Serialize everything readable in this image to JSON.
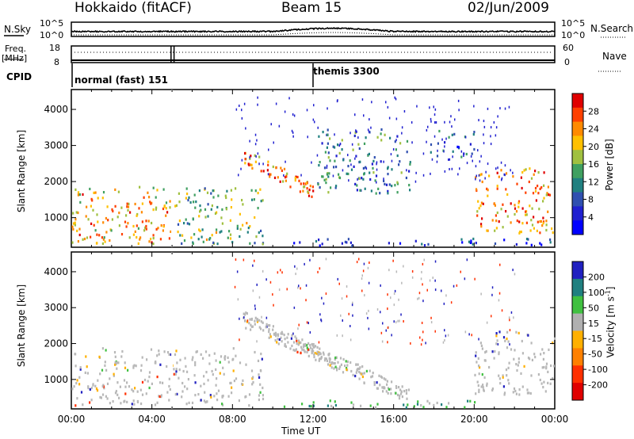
{
  "header": {
    "title": "Hokkaido (fitACF)",
    "beam": "Beam 15",
    "date": "02/Jun/2009"
  },
  "labels": {
    "nsky": "N.Sky",
    "nsearch": "N.Search",
    "freq_l1": "Freq.",
    "freq_l2": "[MHz]",
    "nave": "Nave",
    "cpid": "CPID",
    "nsky_ticks": [
      "10^5",
      "10^0"
    ],
    "nsearch_ticks": [
      "10^5",
      "10^0"
    ],
    "freq_ticks": [
      "18",
      "8"
    ],
    "nave_ticks": [
      "60",
      "0"
    ]
  },
  "cpid_segments": [
    {
      "start_hour": 0.0,
      "label": "normal (fast) 151"
    },
    {
      "start_hour": 12.0,
      "label": "themis 3300"
    }
  ],
  "colorbars": {
    "power": {
      "label": "Power [dB]",
      "ticks": [
        "28",
        "24",
        "20",
        "16",
        "12",
        "8",
        "4"
      ],
      "colors": [
        "#e00000",
        "#ff4000",
        "#ff8a00",
        "#ffc000",
        "#a0c040",
        "#40a060",
        "#208080",
        "#3050b0",
        "#2020d0",
        "#0000ff"
      ]
    },
    "velocity": {
      "label": "Velocity [m s",
      "label_exp": "-1",
      "label_end": "]",
      "ticks": [
        "200",
        "100",
        "50",
        "15",
        "-15",
        "-50",
        "-100",
        "-200"
      ],
      "colors": [
        "#2020c0",
        "#208080",
        "#40c040",
        "#b0b0b0",
        "#ffb000",
        "#ff8000",
        "#ff3000",
        "#e00000"
      ]
    }
  },
  "chart_data": [
    {
      "type": "heatmap",
      "name": "power",
      "xlabel": "",
      "ylabel": "Slant Range [km]",
      "xlim": [
        0,
        24
      ],
      "ylim": [
        180,
        4550
      ],
      "yticks": [
        1000,
        2000,
        3000,
        4000
      ],
      "value_label": "Power [dB]",
      "value_range": [
        0,
        30
      ],
      "regions": [
        {
          "t0": 0.0,
          "t1": 4.9,
          "r0": 300,
          "r1": 1900,
          "level": 22,
          "desc": "near-range echoes"
        },
        {
          "t0": 5.1,
          "t1": 9.5,
          "r0": 300,
          "r1": 1850,
          "level": 16
        },
        {
          "t0": 8.5,
          "t1": 12.0,
          "r0": 1700,
          "r1": 2800,
          "level": 24,
          "desc": "arc band descending"
        },
        {
          "t0": 12.2,
          "t1": 16.8,
          "r0": 1700,
          "r1": 3500,
          "level": 12
        },
        {
          "t0": 17.8,
          "t1": 20.0,
          "r0": 2700,
          "r1": 3450,
          "level": 8
        },
        {
          "t0": 20.0,
          "t1": 24.0,
          "r0": 600,
          "r1": 2400,
          "level": 24
        },
        {
          "t0": 10.5,
          "t1": 24.0,
          "r0": 250,
          "r1": 450,
          "level": 6
        }
      ]
    },
    {
      "type": "heatmap",
      "name": "velocity",
      "xlabel": "Time UT",
      "ylabel": "Slant Range [km]",
      "xlim": [
        0,
        24
      ],
      "ylim": [
        180,
        4550
      ],
      "yticks": [
        1000,
        2000,
        3000,
        4000
      ],
      "xticks": [
        "00:00",
        "04:00",
        "08:00",
        "12:00",
        "16:00",
        "20:00",
        "00:00"
      ],
      "value_label": "Velocity [m s-1]",
      "value_range": [
        -250,
        250
      ],
      "regions": [
        {
          "t0": 0.0,
          "t1": 9.5,
          "r0": 300,
          "r1": 1900,
          "level": 0,
          "desc": "ground scatter mostly"
        },
        {
          "t0": 8.5,
          "t1": 16.8,
          "r0": 1700,
          "r1": 3500,
          "level": 0
        },
        {
          "t0": 20.0,
          "t1": 24.0,
          "r0": 600,
          "r1": 2400,
          "level": 0
        },
        {
          "t0": 10.5,
          "t1": 20.0,
          "r0": 250,
          "r1": 450,
          "level": 40
        }
      ]
    }
  ]
}
